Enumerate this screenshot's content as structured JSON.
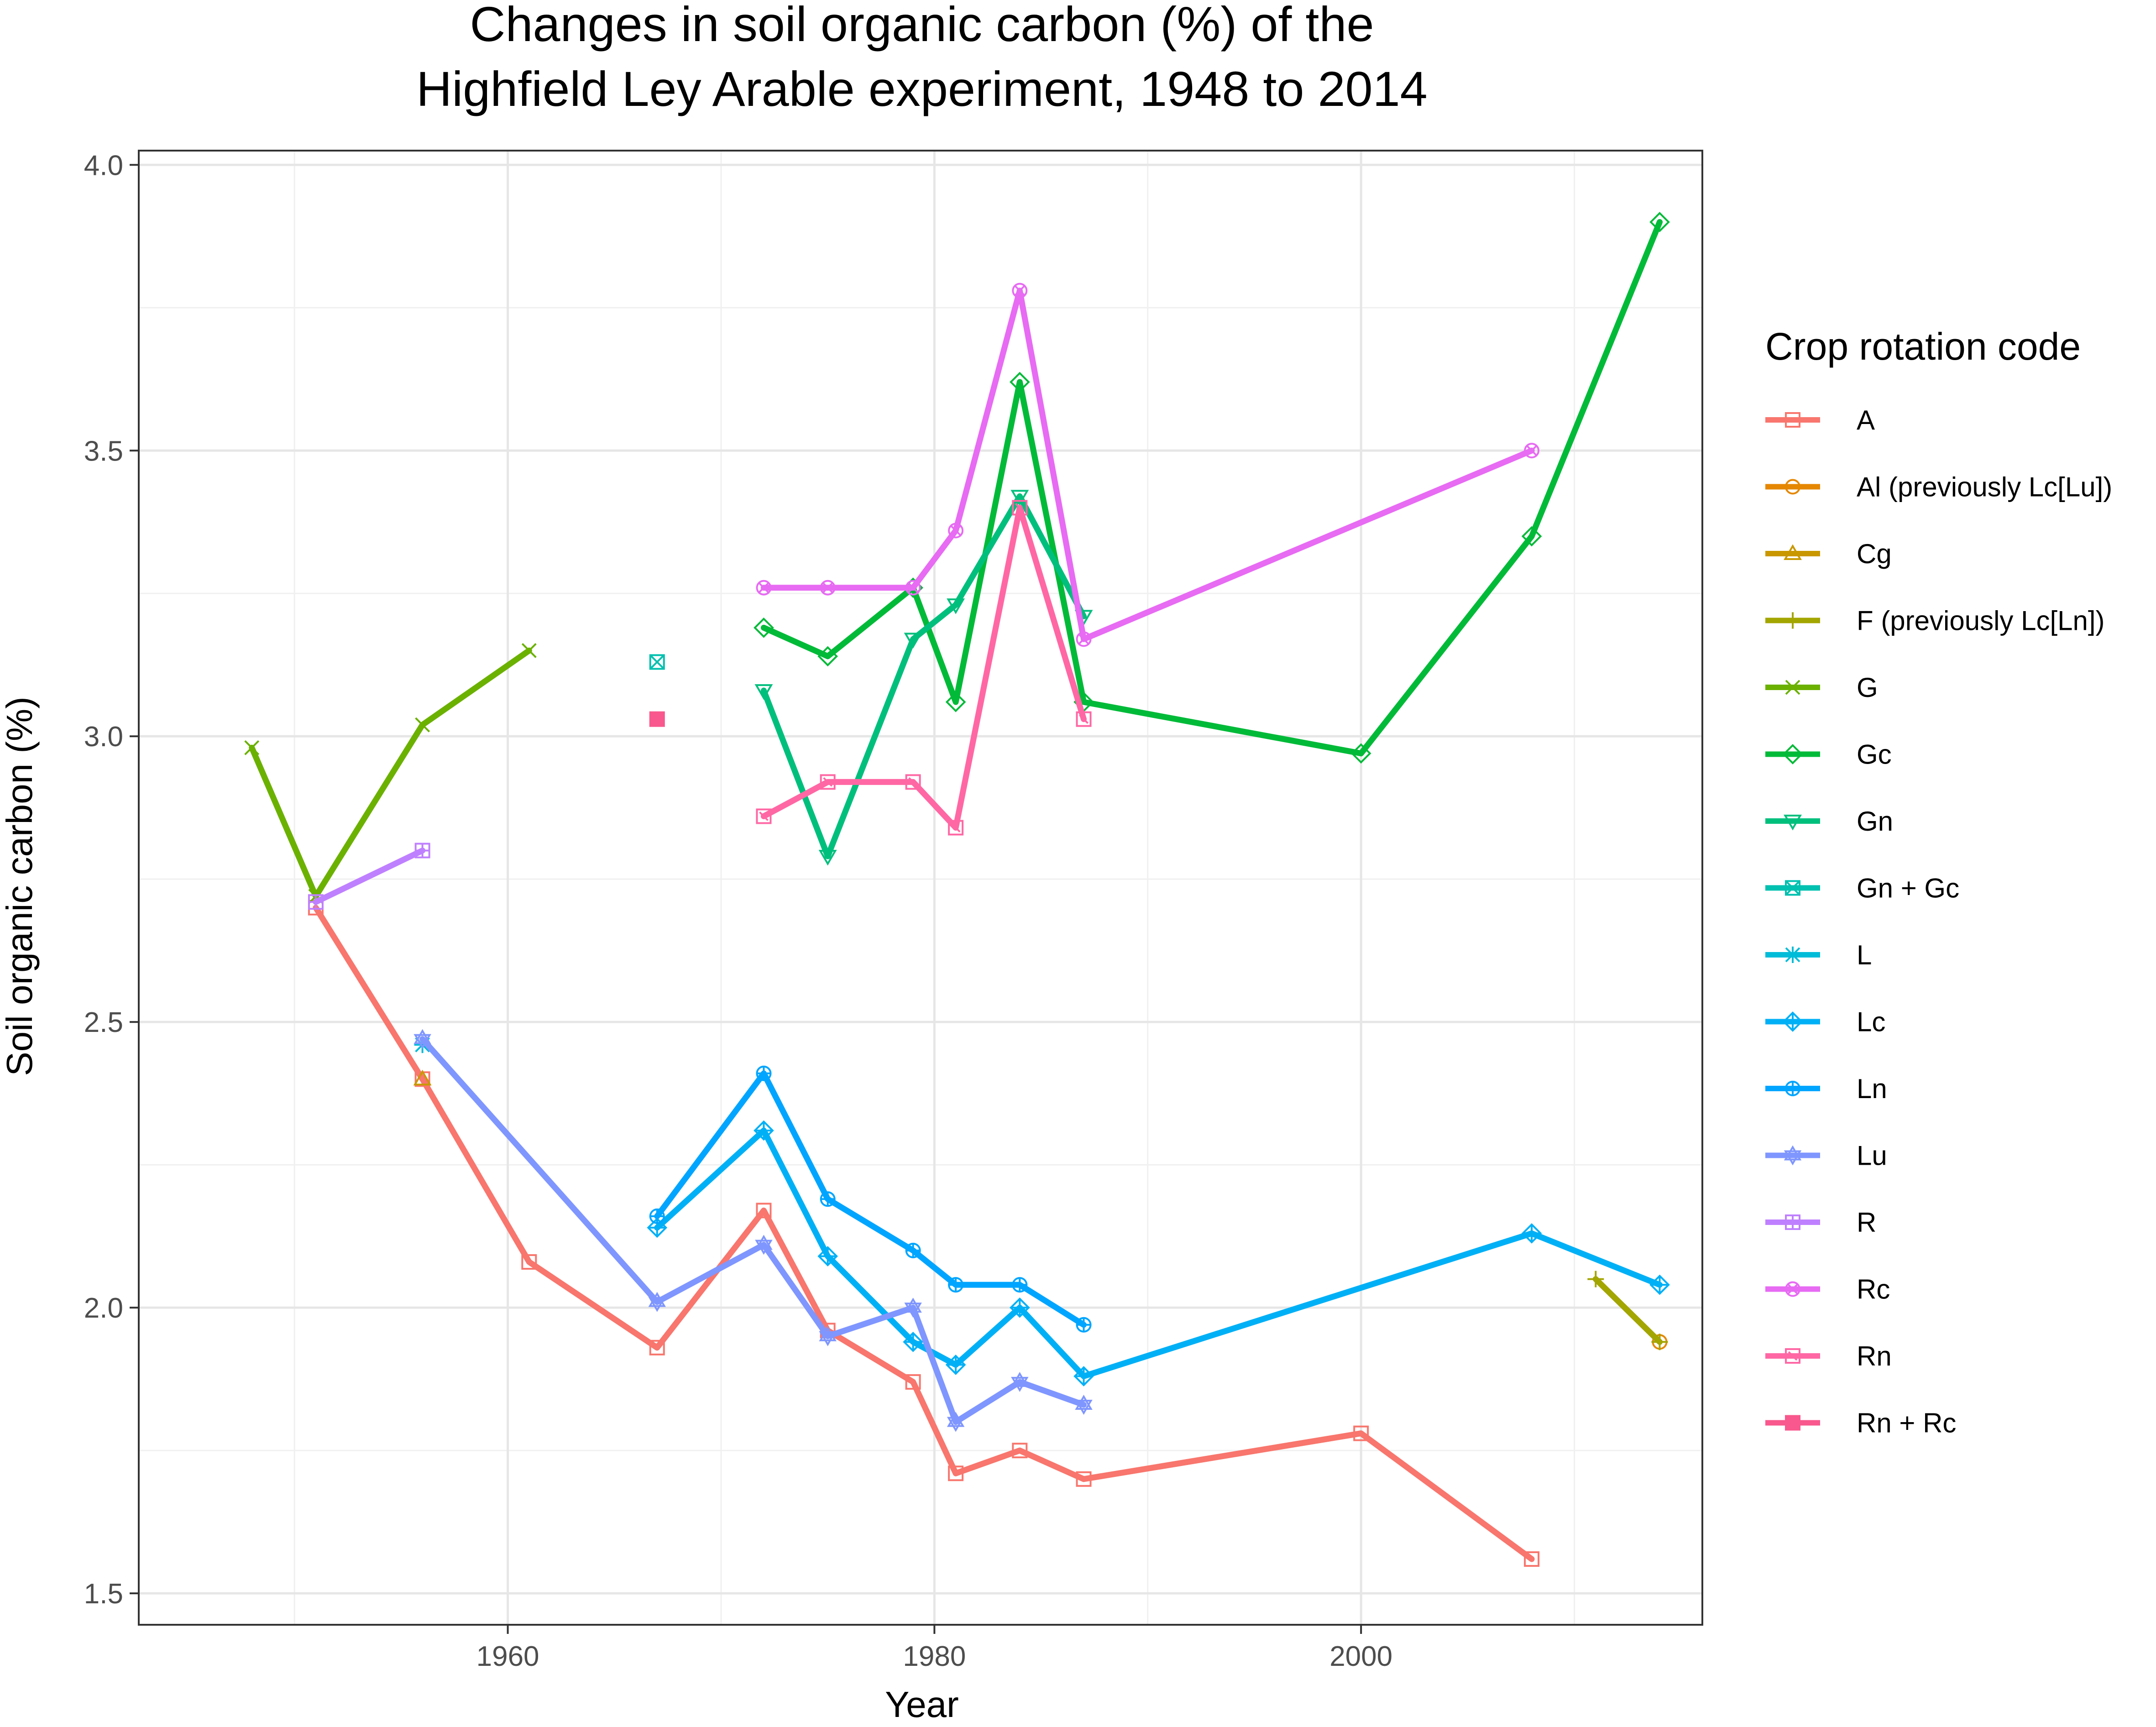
{
  "chart_data": {
    "type": "line",
    "title": "Changes in soil organic carbon (%) of the",
    "subtitle": "Highfield Ley Arable experiment, 1948 to 2014",
    "xlabel": "Year",
    "ylabel": "Soil organic carbon (%)",
    "xlim": [
      1942.7,
      2016.0
    ],
    "ylim": [
      1.445,
      4.025
    ],
    "xticks": [
      1960,
      1980,
      2000
    ],
    "yticks": [
      1.5,
      2.0,
      2.5,
      3.0,
      3.5,
      4.0
    ],
    "xtick_labels": [
      "1960",
      "1980",
      "2000"
    ],
    "ytick_labels": [
      "1.5",
      "2.0",
      "2.5",
      "3.0",
      "3.5",
      "4.0"
    ],
    "grid": true,
    "legend_title": "Crop rotation code",
    "legend_position": "right",
    "series": [
      {
        "name": "A",
        "color": "#F8766D",
        "marker": "square-open",
        "x": [
          1951,
          1956,
          1961,
          1967,
          1972,
          1975,
          1979,
          1981,
          1984,
          1987,
          2000,
          2008
        ],
        "y": [
          2.7,
          2.4,
          2.08,
          1.93,
          2.17,
          1.96,
          1.87,
          1.71,
          1.75,
          1.7,
          1.78,
          1.56
        ]
      },
      {
        "name": "Al (previously Lc[Lu])",
        "color": "#E58700",
        "marker": "circle-open",
        "x": [
          2014
        ],
        "y": [
          1.94
        ]
      },
      {
        "name": "Cg",
        "color": "#C99800",
        "marker": "triangle-open",
        "x": [
          1956
        ],
        "y": [
          2.4
        ]
      },
      {
        "name": "F (previously Lc[Ln])",
        "color": "#A3A500",
        "marker": "plus",
        "x": [
          2011,
          2014
        ],
        "y": [
          2.05,
          1.94
        ]
      },
      {
        "name": "G",
        "color": "#6BB100",
        "marker": "cross",
        "x": [
          1948,
          1951,
          1956,
          1961
        ],
        "y": [
          2.98,
          2.72,
          3.02,
          3.15
        ]
      },
      {
        "name": "Gc",
        "color": "#00BA38",
        "marker": "diamond-open",
        "x": [
          1972,
          1975,
          1979,
          1981,
          1984,
          1987,
          2000,
          2008,
          2014
        ],
        "y": [
          3.19,
          3.14,
          3.26,
          3.06,
          3.62,
          3.06,
          2.97,
          3.35,
          3.9
        ]
      },
      {
        "name": "Gn",
        "color": "#00BF7D",
        "marker": "triangle-down-open",
        "x": [
          1972,
          1975,
          1979,
          1981,
          1984,
          1987
        ],
        "y": [
          3.08,
          2.79,
          3.17,
          3.23,
          3.42,
          3.21
        ]
      },
      {
        "name": "Gn + Gc",
        "color": "#00C0AF",
        "marker": "square-cross",
        "x": [
          1967
        ],
        "y": [
          3.13
        ]
      },
      {
        "name": "L",
        "color": "#00BCD8",
        "marker": "asterisk",
        "x": [
          1956
        ],
        "y": [
          2.46
        ]
      },
      {
        "name": "Lc",
        "color": "#00B0F6",
        "marker": "diamond-plus",
        "x": [
          1967,
          1972,
          1975,
          1979,
          1981,
          1984,
          1987,
          2008,
          2014
        ],
        "y": [
          2.14,
          2.31,
          2.09,
          1.94,
          1.9,
          2.0,
          1.88,
          2.13,
          2.04
        ]
      },
      {
        "name": "Ln",
        "color": "#00A5FF",
        "marker": "circle-plus",
        "x": [
          1967,
          1972,
          1975,
          1979,
          1981,
          1984,
          1987
        ],
        "y": [
          2.16,
          2.41,
          2.19,
          2.1,
          2.04,
          2.04,
          1.97
        ]
      },
      {
        "name": "Lu",
        "color": "#7F96FF",
        "marker": "star-open",
        "x": [
          1956,
          1967,
          1972,
          1975,
          1979,
          1981,
          1984,
          1987
        ],
        "y": [
          2.47,
          2.01,
          2.11,
          1.95,
          2.0,
          1.8,
          1.87,
          1.83
        ]
      },
      {
        "name": "R",
        "color": "#BF80FF",
        "marker": "square-plus",
        "x": [
          1951,
          1956
        ],
        "y": [
          2.71,
          2.8
        ]
      },
      {
        "name": "Rc",
        "color": "#E76BF3",
        "marker": "circle-cross",
        "x": [
          1972,
          1975,
          1979,
          1981,
          1984,
          1987,
          2008
        ],
        "y": [
          3.26,
          3.26,
          3.26,
          3.36,
          3.78,
          3.17,
          3.5
        ]
      },
      {
        "name": "Rn",
        "color": "#FF67A4",
        "marker": "square-open-x",
        "x": [
          1972,
          1975,
          1979,
          1981,
          1984,
          1987
        ],
        "y": [
          2.86,
          2.92,
          2.92,
          2.84,
          3.4,
          3.03
        ]
      },
      {
        "name": "Rn + Rc",
        "color": "#F8588D",
        "marker": "square-filled",
        "x": [
          1967
        ],
        "y": [
          3.03
        ]
      }
    ]
  }
}
